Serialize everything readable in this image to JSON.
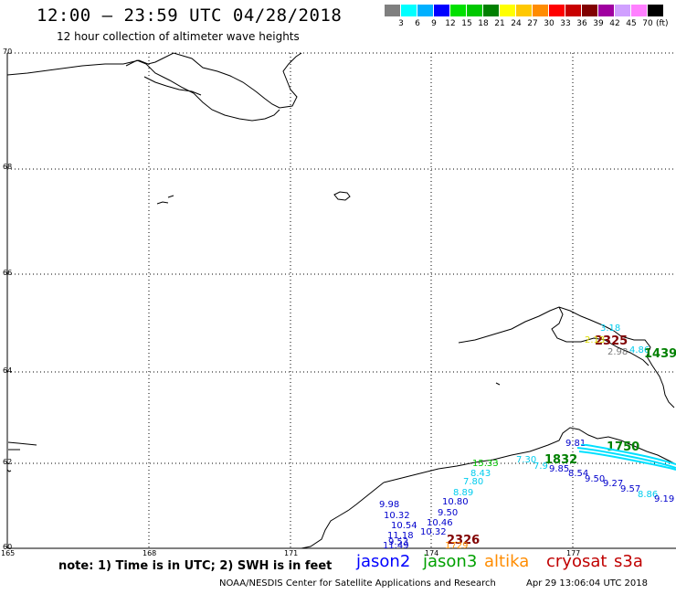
{
  "title": "12:00 – 23:59 UTC 04/28/2018",
  "subtitle": "12 hour collection of altimeter wave heights",
  "scale": {
    "unit": "(ft)",
    "swatches": [
      {
        "label": "3",
        "color": "#7f7f7f"
      },
      {
        "label": "6",
        "color": "#00ffff"
      },
      {
        "label": "9",
        "color": "#00b0ff"
      },
      {
        "label": "12",
        "color": "#0000ff"
      },
      {
        "label": "15",
        "color": "#00e000"
      },
      {
        "label": "18",
        "color": "#00c800"
      },
      {
        "label": "21",
        "color": "#008000"
      },
      {
        "label": "24",
        "color": "#ffff00"
      },
      {
        "label": "27",
        "color": "#ffc800"
      },
      {
        "label": "30",
        "color": "#ff8c00"
      },
      {
        "label": "33",
        "color": "#ff0000"
      },
      {
        "label": "36",
        "color": "#c80000"
      },
      {
        "label": "39",
        "color": "#800000"
      },
      {
        "label": "42",
        "color": "#a000a0"
      },
      {
        "label": "45",
        "color": "#d0a0ff"
      },
      {
        "label": "70",
        "color": "#ff80ff"
      },
      {
        "label": "",
        "color": "#000000"
      }
    ]
  },
  "grid": {
    "lat_labels": [
      "70",
      "68",
      "66",
      "64",
      "62",
      "60"
    ],
    "lon_labels": [
      "165",
      "168",
      "171",
      "174",
      "177"
    ]
  },
  "note": "note: 1) Time is in UTC; 2) SWH is in feet",
  "satellites": [
    {
      "name": "jason2",
      "color": "#0000ff"
    },
    {
      "name": "jason3",
      "color": "#00a000"
    },
    {
      "name": "altika",
      "color": "#ff8c00"
    },
    {
      "name": "cryosat",
      "color": "#c00000"
    },
    {
      "name": "s3a",
      "color": "#c00000"
    }
  ],
  "footer": "NOAA/NESDIS Center for Satellite Applications and Research",
  "footer_date": "Apr 29 13:06:04 UTC 2018",
  "observations": [
    {
      "text": "3.18",
      "color": "#00ccee",
      "size": "n"
    },
    {
      "text": "2325",
      "color": "#800000",
      "size": "b"
    },
    {
      "text": "2.13",
      "color": "#dddd00",
      "size": "n"
    },
    {
      "text": "2.98",
      "color": "#777777",
      "size": "n"
    },
    {
      "text": "4.86",
      "color": "#00ccee",
      "size": "n"
    },
    {
      "text": "1439",
      "color": "#008000",
      "size": "b"
    },
    {
      "text": "9.81",
      "color": "#0000cc",
      "size": "n"
    },
    {
      "text": "1750",
      "color": "#008000",
      "size": "b"
    },
    {
      "text": "7.30",
      "color": "#00ccee",
      "size": "n"
    },
    {
      "text": "1832",
      "color": "#008000",
      "size": "b"
    },
    {
      "text": "7.9",
      "color": "#00ccee",
      "size": "n"
    },
    {
      "text": "9.85",
      "color": "#0000cc",
      "size": "n"
    },
    {
      "text": "15.33",
      "color": "#00c800",
      "size": "n"
    },
    {
      "text": "8.43",
      "color": "#00ccee",
      "size": "n"
    },
    {
      "text": "8.54",
      "color": "#0000cc",
      "size": "n"
    },
    {
      "text": "9.50",
      "color": "#0000cc",
      "size": "n"
    },
    {
      "text": "7.80",
      "color": "#00ccee",
      "size": "n"
    },
    {
      "text": "9.27",
      "color": "#0000cc",
      "size": "n"
    },
    {
      "text": "9.57",
      "color": "#0000cc",
      "size": "n"
    },
    {
      "text": "8.89",
      "color": "#00ccee",
      "size": "n"
    },
    {
      "text": "8.86",
      "color": "#00ccee",
      "size": "n"
    },
    {
      "text": "9.19",
      "color": "#0000cc",
      "size": "n"
    },
    {
      "text": "10.80",
      "color": "#0000cc",
      "size": "n"
    },
    {
      "text": "9.98",
      "color": "#0000cc",
      "size": "n"
    },
    {
      "text": "9.50",
      "color": "#0000cc",
      "size": "n"
    },
    {
      "text": "10.32",
      "color": "#0000cc",
      "size": "n"
    },
    {
      "text": "10.46",
      "color": "#0000cc",
      "size": "n"
    },
    {
      "text": "10.54",
      "color": "#0000cc",
      "size": "n"
    },
    {
      "text": "10.32",
      "color": "#0000cc",
      "size": "n"
    },
    {
      "text": "11.18",
      "color": "#0000cc",
      "size": "n"
    },
    {
      "text": "2326",
      "color": "#800000",
      "size": "b"
    },
    {
      "text": "9.53",
      "color": "#0000cc",
      "size": "n"
    },
    {
      "text": "1729",
      "color": "#ff8c00",
      "size": "n"
    },
    {
      "text": "11.49",
      "color": "#0000cc",
      "size": "n"
    }
  ]
}
